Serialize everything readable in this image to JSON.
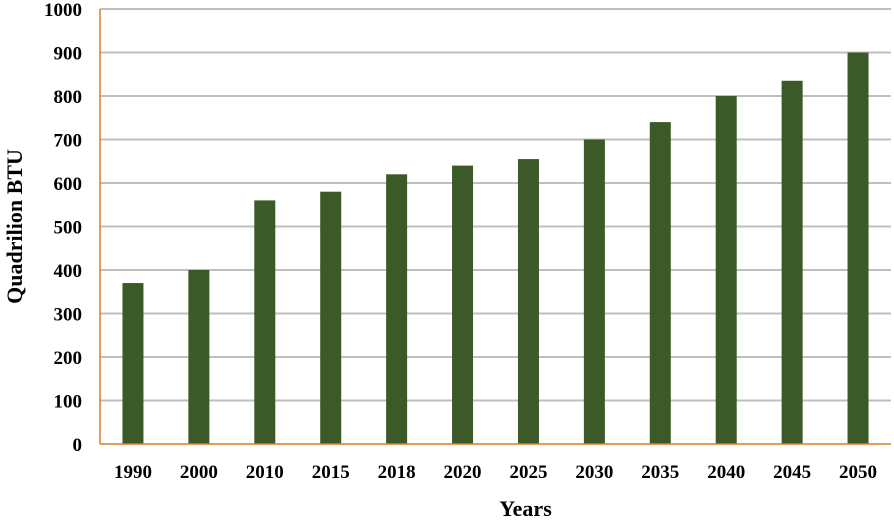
{
  "chart_data": {
    "type": "bar",
    "categories": [
      "1990",
      "2000",
      "2010",
      "2015",
      "2018",
      "2020",
      "2025",
      "2030",
      "2035",
      "2040",
      "2045",
      "2050"
    ],
    "values": [
      370,
      400,
      560,
      580,
      620,
      640,
      655,
      700,
      740,
      800,
      835,
      900
    ],
    "xlabel": "Years",
    "ylabel": "Quadrilion BTU",
    "ylim": [
      0,
      1000
    ],
    "yticks": [
      0,
      100,
      200,
      300,
      400,
      500,
      600,
      700,
      800,
      900,
      1000
    ],
    "grid": true,
    "colors": {
      "bar": "#3b5a27",
      "grid": "#bfbfbf",
      "axis": "#e07b22"
    }
  }
}
